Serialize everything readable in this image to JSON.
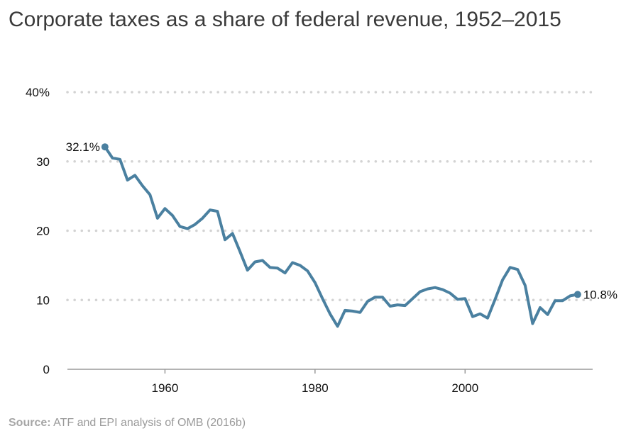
{
  "title": "Corporate taxes as a share of federal revenue, 1952–2015",
  "source_label": "Source:",
  "source_text": "ATF and EPI analysis of OMB (2016b)",
  "colors": {
    "line": "#4a80a0",
    "grid": "#d3d3d3",
    "axis": "#9a9a9a"
  },
  "chart_data": {
    "type": "line",
    "title": "Corporate taxes as a share of federal revenue, 1952–2015",
    "xlabel": "",
    "ylabel": "",
    "xlim": [
      1947,
      2017
    ],
    "ylim": [
      0,
      40
    ],
    "x_ticks": [
      1960,
      1980,
      2000
    ],
    "x_tick_labels": [
      "1960",
      "1980",
      "2000"
    ],
    "y_ticks": [
      0,
      10,
      20,
      30,
      40
    ],
    "y_tick_labels": [
      "0",
      "10",
      "20",
      "30",
      "40%"
    ],
    "grid": "horizontal dotted",
    "series": [
      {
        "x": [
          1952,
          1953,
          1954,
          1955,
          1956,
          1957,
          1958,
          1959,
          1960,
          1961,
          1962,
          1963,
          1964,
          1965,
          1966,
          1967,
          1968,
          1969,
          1970,
          1971,
          1972,
          1973,
          1974,
          1975,
          1976,
          1977,
          1978,
          1979,
          1980,
          1981,
          1982,
          1983,
          1984,
          1985,
          1986,
          1987,
          1988,
          1989,
          1990,
          1991,
          1992,
          1993,
          1994,
          1995,
          1996,
          1997,
          1998,
          1999,
          2000,
          2001,
          2002,
          2003,
          2004,
          2005,
          2006,
          2007,
          2008,
          2009,
          2010,
          2011,
          2012,
          2013,
          2014,
          2015
        ],
        "values": [
          32.1,
          30.5,
          30.3,
          27.3,
          28.0,
          26.5,
          25.2,
          21.8,
          23.2,
          22.2,
          20.6,
          20.3,
          20.9,
          21.8,
          23.0,
          22.8,
          18.7,
          19.6,
          17.0,
          14.3,
          15.5,
          15.7,
          14.7,
          14.6,
          13.9,
          15.4,
          15.0,
          14.2,
          12.5,
          10.2,
          8.0,
          6.2,
          8.5,
          8.4,
          8.2,
          9.8,
          10.4,
          10.4,
          9.1,
          9.3,
          9.2,
          10.2,
          11.2,
          11.6,
          11.8,
          11.5,
          11.0,
          10.1,
          10.2,
          7.6,
          8.0,
          7.4,
          10.1,
          12.9,
          14.7,
          14.4,
          12.1,
          6.6,
          8.9,
          7.9,
          9.9,
          9.9,
          10.6,
          10.8
        ]
      }
    ],
    "annotations": [
      {
        "x": 1952,
        "y": 32.1,
        "text": "32.1%"
      },
      {
        "x": 2015,
        "y": 10.8,
        "text": "10.8%"
      }
    ]
  }
}
